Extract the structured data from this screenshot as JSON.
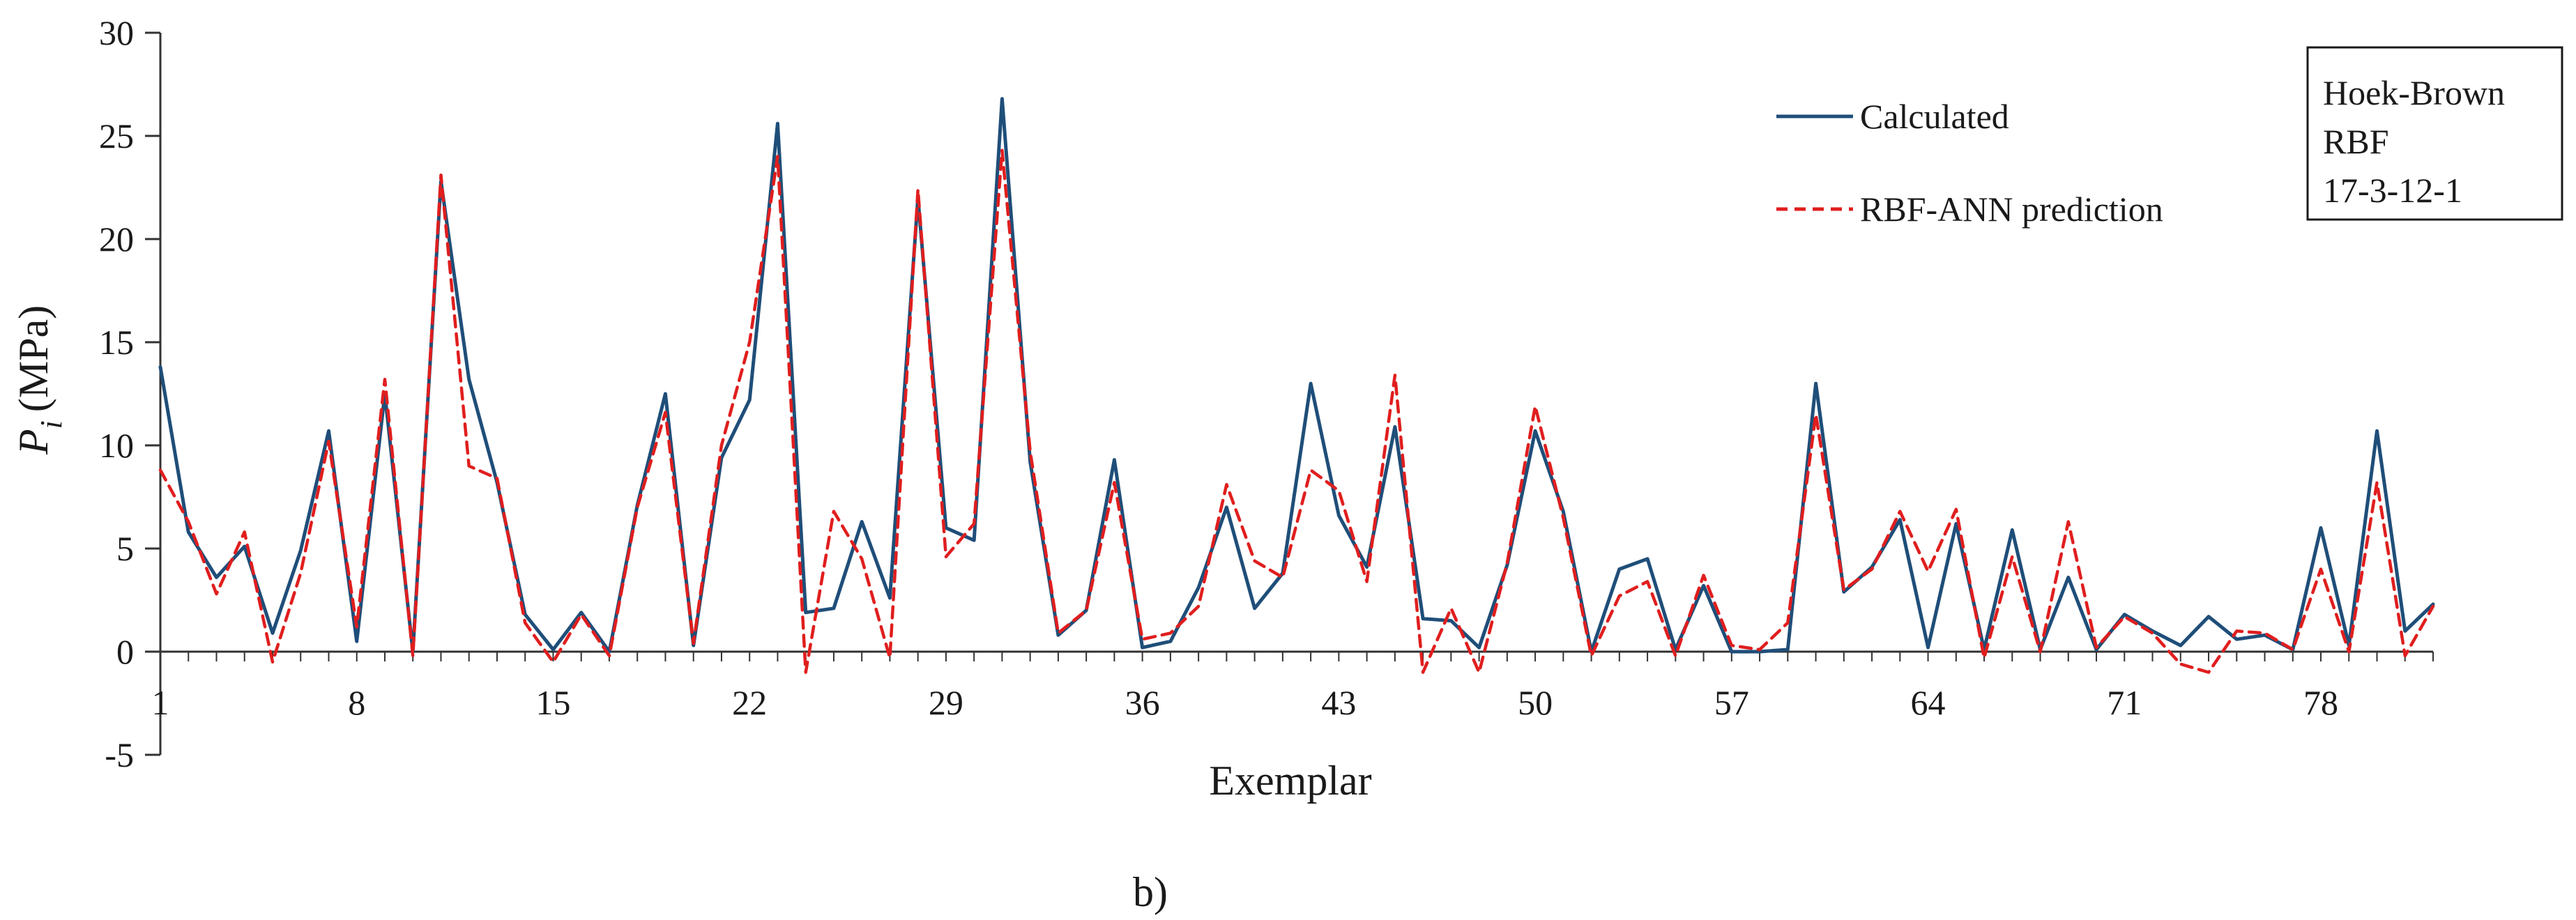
{
  "chart_data": {
    "type": "line",
    "xlabel": "Exemplar",
    "ylabel_main": "P",
    "ylabel_sub": "i",
    "ylabel_unit": "(MPa)",
    "ylim": [
      -5,
      30
    ],
    "yticks": [
      -5,
      0,
      5,
      10,
      15,
      20,
      25,
      30
    ],
    "xlim": [
      1,
      82
    ],
    "xtick_labels": [
      "1",
      "8",
      "15",
      "22",
      "29",
      "36",
      "43",
      "50",
      "57",
      "64",
      "71",
      "78"
    ],
    "xtick_positions": [
      1,
      8,
      15,
      22,
      29,
      36,
      43,
      50,
      57,
      64,
      71,
      78
    ],
    "series": [
      {
        "name": "Calculated",
        "color": "#1f4e79",
        "dash": "solid",
        "values": [
          13.8,
          5.8,
          3.6,
          5.1,
          0.9,
          4.9,
          10.7,
          0.5,
          12.5,
          0.0,
          22.8,
          13.2,
          8.2,
          1.8,
          0.1,
          1.9,
          0.0,
          7.1,
          12.5,
          0.3,
          9.4,
          12.2,
          25.6,
          1.9,
          2.1,
          6.3,
          2.6,
          22.0,
          6.0,
          5.4,
          26.8,
          9.2,
          0.8,
          2.0,
          9.3,
          0.2,
          0.5,
          3.1,
          7.0,
          2.1,
          3.8,
          13.0,
          6.6,
          4.1,
          10.9,
          1.6,
          1.5,
          0.2,
          4.2,
          10.7,
          6.8,
          0.0,
          4.0,
          4.5,
          0.1,
          3.2,
          0.0,
          0.0,
          0.1,
          13.0,
          2.9,
          4.1,
          6.4,
          0.2,
          6.2,
          0.1,
          5.9,
          0.1,
          3.6,
          0.1,
          1.8,
          1.0,
          0.3,
          1.7,
          0.6,
          0.8,
          0.1,
          6.0,
          0.3,
          10.7,
          1.0,
          2.3
        ]
      },
      {
        "name": "RBF-ANN prediction",
        "color": "#e01e1e",
        "dash": "dashed",
        "values": [
          8.8,
          6.3,
          2.8,
          5.8,
          -0.5,
          3.8,
          10.2,
          1.2,
          13.2,
          -0.2,
          23.1,
          9.0,
          8.4,
          1.4,
          -0.5,
          1.8,
          -0.2,
          7.0,
          11.6,
          0.4,
          10.0,
          15.0,
          24.0,
          -1.0,
          6.8,
          4.5,
          -0.3,
          22.4,
          4.6,
          6.2,
          24.3,
          9.7,
          0.9,
          2.0,
          8.2,
          0.6,
          0.9,
          2.2,
          8.1,
          4.4,
          3.6,
          8.8,
          7.8,
          3.4,
          13.4,
          -1.0,
          2.1,
          -1.0,
          4.3,
          11.9,
          6.5,
          -0.2,
          2.7,
          3.4,
          -0.2,
          3.7,
          0.3,
          0.1,
          1.4,
          11.5,
          3.0,
          4.0,
          6.8,
          3.9,
          6.9,
          -0.3,
          4.6,
          0.0,
          6.3,
          0.2,
          1.7,
          0.9,
          -0.6,
          -1.0,
          1.0,
          0.9,
          0.1,
          4.0,
          0.0,
          8.2,
          -0.2,
          2.2
        ]
      }
    ],
    "legend_position": "top-right",
    "grid": false
  },
  "info_box": {
    "lines": [
      "Hoek-Brown",
      "RBF",
      "17-3-12-1"
    ]
  },
  "caption": "b)"
}
